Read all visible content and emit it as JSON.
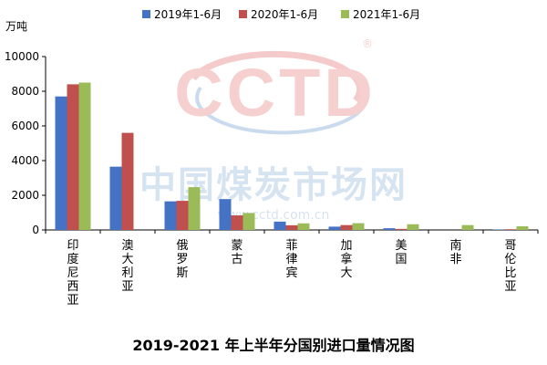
{
  "chart_data": {
    "type": "bar",
    "title": "2019-2021 年上半年分国别进口量情况图",
    "unit_label": "万吨",
    "ylim": [
      0,
      10000
    ],
    "yticks": [
      "0",
      "2000",
      "4000",
      "6000",
      "8000",
      "10000"
    ],
    "grid": false,
    "legend_position": "top",
    "categories": [
      "印度尼西亚",
      "澳大利亚",
      "俄罗斯",
      "蒙古",
      "菲律宾",
      "加拿大",
      "美国",
      "南非",
      "哥伦比亚"
    ],
    "series": [
      {
        "name": "2019年1-6月",
        "color": "#4472C4",
        "values": [
          7700,
          3650,
          1650,
          1780,
          480,
          190,
          100,
          0,
          30
        ]
      },
      {
        "name": "2020年1-6月",
        "color": "#C0504D",
        "values": [
          8400,
          5600,
          1680,
          840,
          270,
          280,
          60,
          0,
          40
        ]
      },
      {
        "name": "2021年1-6月",
        "color": "#9BBB59",
        "values": [
          8500,
          0,
          2470,
          980,
          380,
          390,
          330,
          280,
          210
        ]
      }
    ]
  },
  "watermark": {
    "logo_text": "CCTD",
    "registered": "®",
    "cn_text": "中国煤炭市场网",
    "url_text": "www.cctd.com.cn"
  }
}
